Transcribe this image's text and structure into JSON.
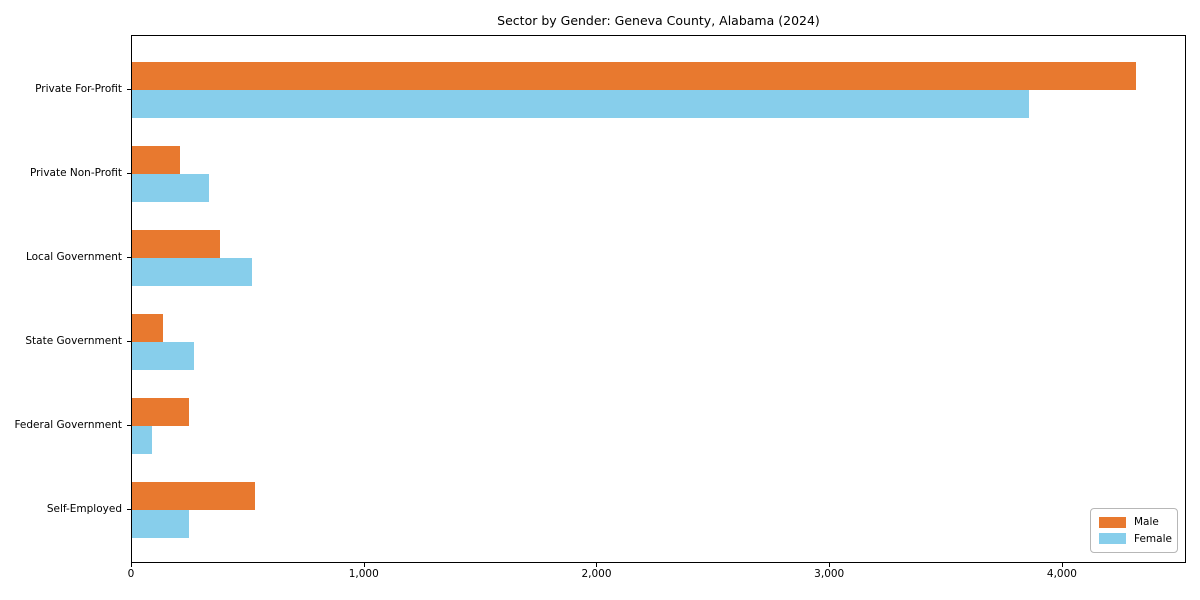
{
  "chart_data": {
    "type": "bar",
    "orientation": "horizontal",
    "title": "Sector by Gender: Geneva County, Alabama (2024)",
    "categories": [
      "Private For-Profit",
      "Private Non-Profit",
      "Local Government",
      "State Government",
      "Federal Government",
      "Self-Employed"
    ],
    "series": [
      {
        "name": "Male",
        "color": "#e8792f",
        "values": [
          4315,
          205,
          380,
          135,
          245,
          530
        ]
      },
      {
        "name": "Female",
        "color": "#87ceeb",
        "values": [
          3855,
          330,
          515,
          265,
          85,
          245
        ]
      }
    ],
    "xlabel": "",
    "ylabel": "",
    "xlim": [
      0,
      4533
    ],
    "xticks": [
      {
        "value": 0,
        "label": "0"
      },
      {
        "value": 1000,
        "label": "1,000"
      },
      {
        "value": 2000,
        "label": "2,000"
      },
      {
        "value": 3000,
        "label": "3,000"
      },
      {
        "value": 4000,
        "label": "4,000"
      }
    ],
    "grid": false,
    "legend_position": "lower right",
    "plot_border_color": "#000000",
    "background_color": "#ffffff"
  }
}
